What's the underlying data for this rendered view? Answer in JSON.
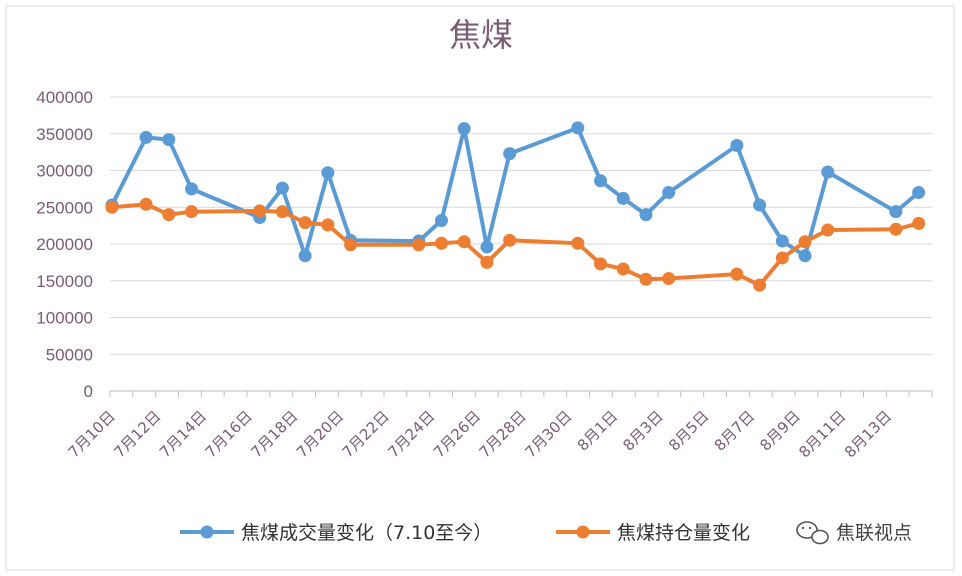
{
  "chart_data": {
    "type": "line",
    "title": "焦煤",
    "xlabel": "",
    "ylabel": "",
    "ylim": [
      0,
      400000
    ],
    "y_ticks": [
      "400000",
      "350000",
      "300000",
      "250000",
      "200000",
      "150000",
      "100000",
      "50000",
      "0"
    ],
    "x_tick_labels": [
      "7月10日",
      "7月12日",
      "7月14日",
      "7月16日",
      "7月18日",
      "7月20日",
      "7月22日",
      "7月24日",
      "7月26日",
      "7月28日",
      "7月30日",
      "8月1日",
      "8月3日",
      "8月5日",
      "8月7日",
      "8月9日",
      "8月11日",
      "8月13日"
    ],
    "x_range_days": [
      0,
      36
    ],
    "grid": true,
    "legend_position": "bottom",
    "series": [
      {
        "name": "焦煤成交量变化（7.10至今）",
        "color": "#5b9bd5",
        "points": [
          {
            "day": 0,
            "date": "7月10日",
            "value": 253000
          },
          {
            "day": 1.5,
            "date": "7月11日",
            "value": 345000
          },
          {
            "day": 2.5,
            "date": "7月12日",
            "value": 342000
          },
          {
            "day": 3.5,
            "date": "7月13日",
            "value": 275000
          },
          {
            "day": 6.5,
            "date": "7月16日",
            "value": 236000
          },
          {
            "day": 7.5,
            "date": "7月17日",
            "value": 276000
          },
          {
            "day": 8.5,
            "date": "7月18日",
            "value": 184000
          },
          {
            "day": 9.5,
            "date": "7月19日",
            "value": 297000
          },
          {
            "day": 10.5,
            "date": "7月20日",
            "value": 205000
          },
          {
            "day": 13.5,
            "date": "7月23日",
            "value": 204000
          },
          {
            "day": 14.5,
            "date": "7月24日",
            "value": 232000
          },
          {
            "day": 15.5,
            "date": "7月25日",
            "value": 357000
          },
          {
            "day": 16.5,
            "date": "7月26日",
            "value": 196000
          },
          {
            "day": 17.5,
            "date": "7月27日",
            "value": 323000
          },
          {
            "day": 20.5,
            "date": "7月30日",
            "value": 358000
          },
          {
            "day": 21.5,
            "date": "7月31日",
            "value": 286000
          },
          {
            "day": 22.5,
            "date": "8月1日",
            "value": 262000
          },
          {
            "day": 23.5,
            "date": "8月2日",
            "value": 240000
          },
          {
            "day": 24.5,
            "date": "8月3日",
            "value": 270000
          },
          {
            "day": 27.5,
            "date": "8月6日",
            "value": 334000
          },
          {
            "day": 28.5,
            "date": "8月7日",
            "value": 253000
          },
          {
            "day": 29.5,
            "date": "8月8日",
            "value": 204000
          },
          {
            "day": 30.5,
            "date": "8月9日",
            "value": 184000
          },
          {
            "day": 31.5,
            "date": "8月10日",
            "value": 298000
          },
          {
            "day": 34.5,
            "date": "8月13日",
            "value": 244000
          },
          {
            "day": 35.5,
            "date": "8月14日",
            "value": 270000
          }
        ]
      },
      {
        "name": "焦煤持仓量变化",
        "color": "#ed7d31",
        "points": [
          {
            "day": 0,
            "date": "7月10日",
            "value": 250000
          },
          {
            "day": 1.5,
            "date": "7月11日",
            "value": 254000
          },
          {
            "day": 2.5,
            "date": "7月12日",
            "value": 240000
          },
          {
            "day": 3.5,
            "date": "7月13日",
            "value": 244000
          },
          {
            "day": 6.5,
            "date": "7月16日",
            "value": 245000
          },
          {
            "day": 7.5,
            "date": "7月17日",
            "value": 244000
          },
          {
            "day": 8.5,
            "date": "7月18日",
            "value": 229000
          },
          {
            "day": 9.5,
            "date": "7月19日",
            "value": 226000
          },
          {
            "day": 10.5,
            "date": "7月20日",
            "value": 199000
          },
          {
            "day": 13.5,
            "date": "7月23日",
            "value": 199000
          },
          {
            "day": 14.5,
            "date": "7月24日",
            "value": 201000
          },
          {
            "day": 15.5,
            "date": "7月25日",
            "value": 203000
          },
          {
            "day": 16.5,
            "date": "7月26日",
            "value": 175000
          },
          {
            "day": 17.5,
            "date": "7月27日",
            "value": 205000
          },
          {
            "day": 20.5,
            "date": "7月30日",
            "value": 201000
          },
          {
            "day": 21.5,
            "date": "7月31日",
            "value": 173000
          },
          {
            "day": 22.5,
            "date": "8月1日",
            "value": 166000
          },
          {
            "day": 23.5,
            "date": "8月2日",
            "value": 152000
          },
          {
            "day": 24.5,
            "date": "8月3日",
            "value": 153000
          },
          {
            "day": 27.5,
            "date": "8月6日",
            "value": 159000
          },
          {
            "day": 28.5,
            "date": "8月7日",
            "value": 144000
          },
          {
            "day": 29.5,
            "date": "8月8日",
            "value": 181000
          },
          {
            "day": 30.5,
            "date": "8月9日",
            "value": 203000
          },
          {
            "day": 31.5,
            "date": "8月10日",
            "value": 219000
          },
          {
            "day": 34.5,
            "date": "8月13日",
            "value": 220000
          },
          {
            "day": 35.5,
            "date": "8月14日",
            "value": 228000
          }
        ]
      }
    ]
  },
  "watermark": {
    "text": "焦联视点",
    "icon": "wechat-bubbles-icon"
  }
}
